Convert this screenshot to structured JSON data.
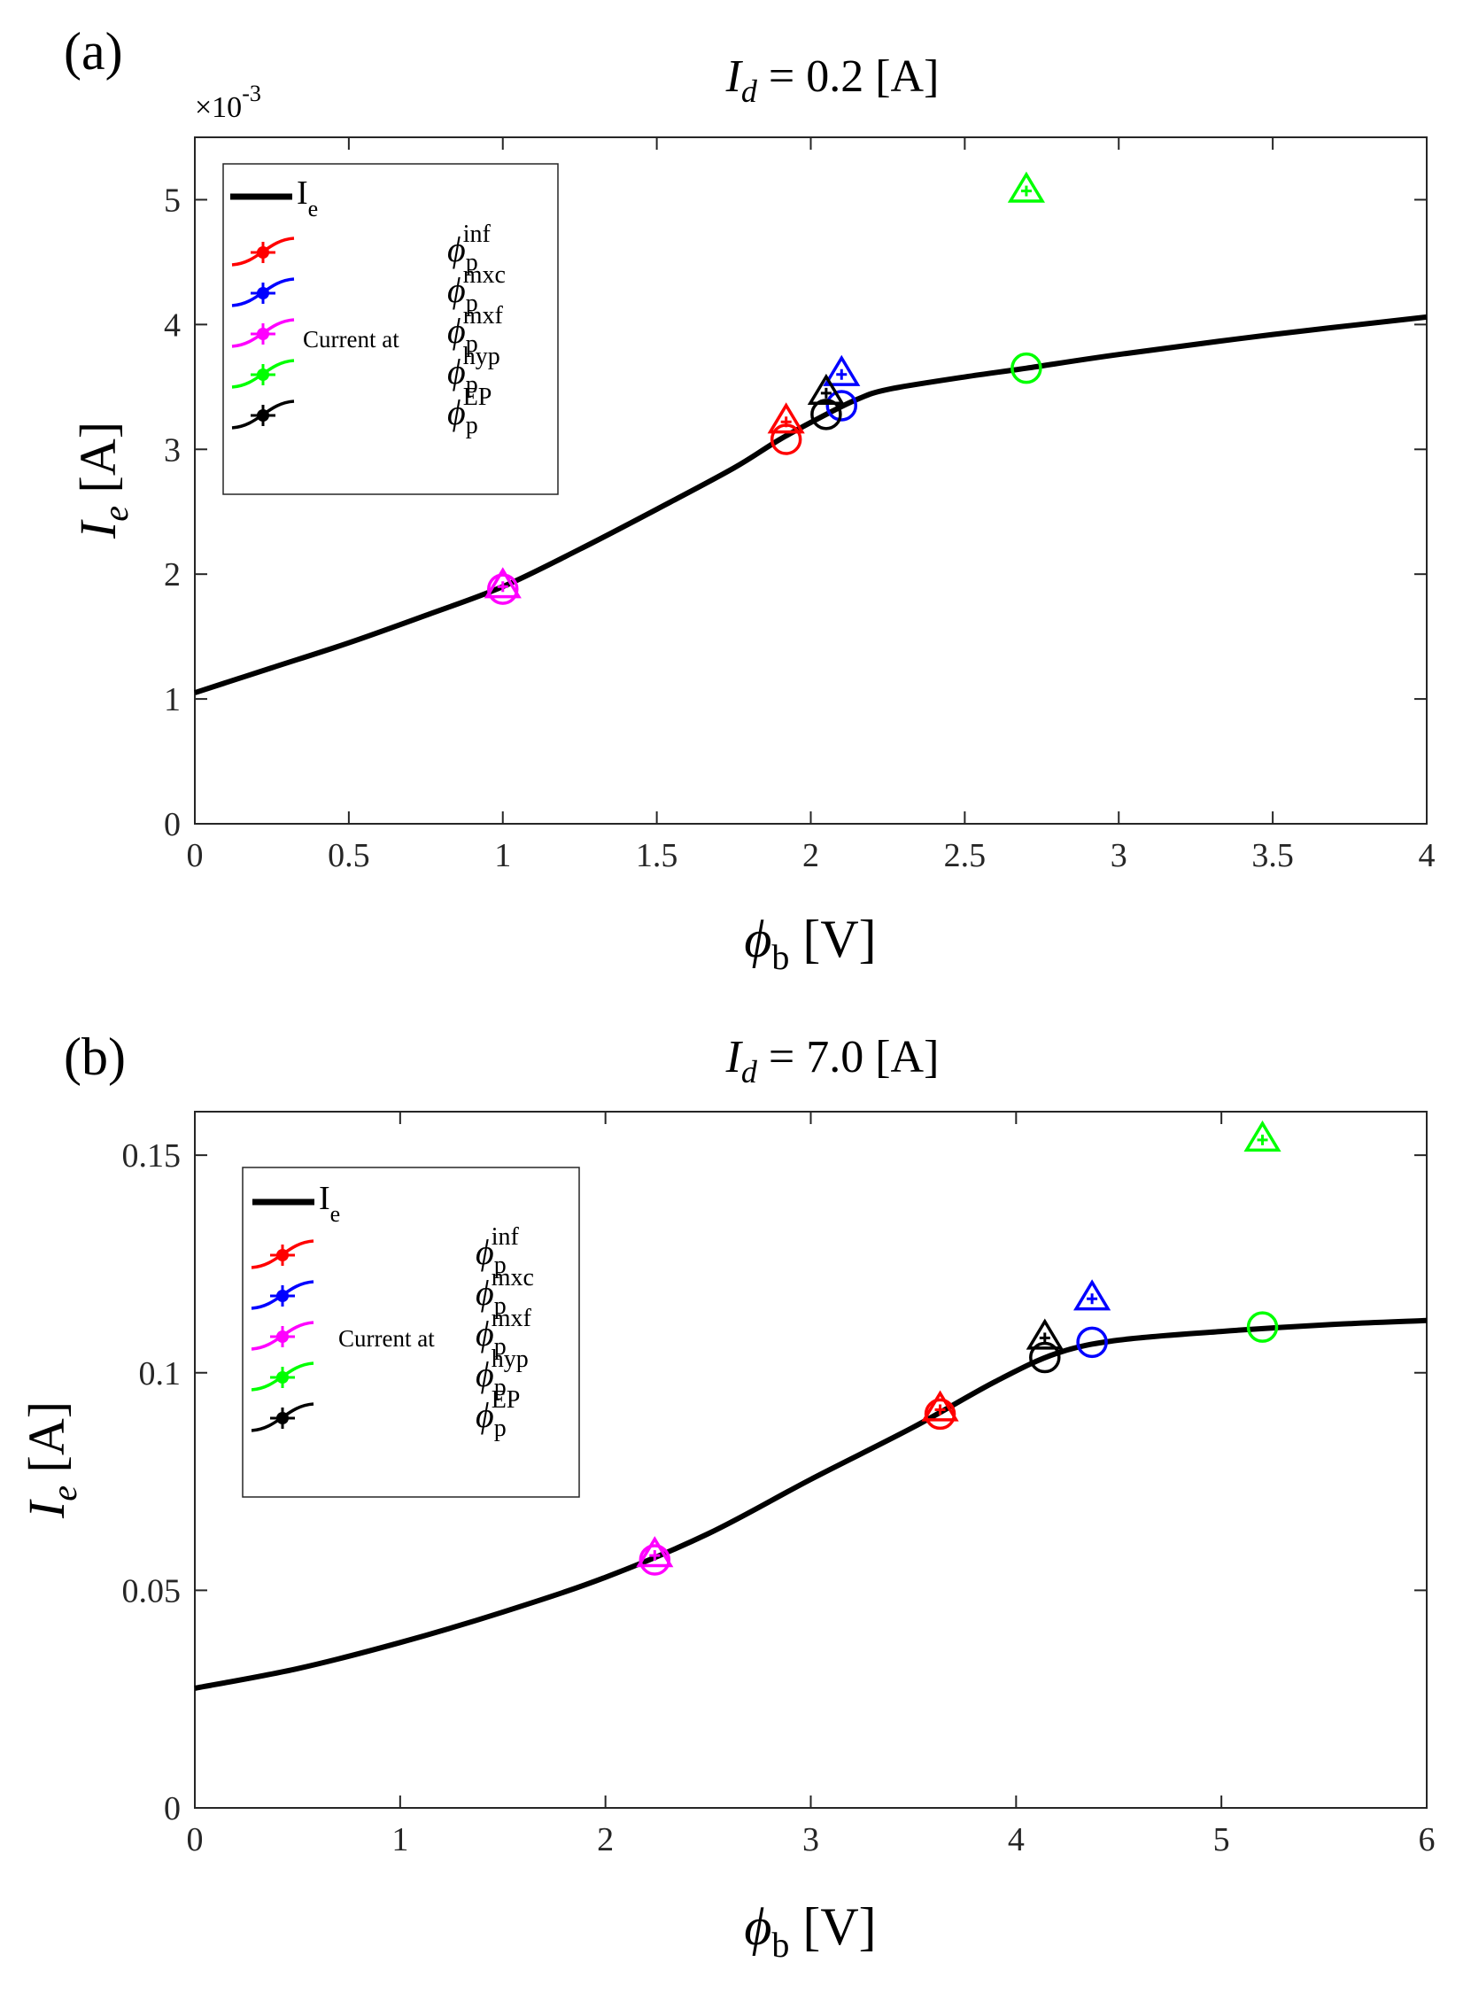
{
  "colors": {
    "curve": "#000000",
    "inf": "#ff0000",
    "mxc": "#0000ff",
    "mxf": "#ff00ff",
    "hyp": "#00ff00",
    "ep": "#000000"
  },
  "legend": {
    "curve_label": "I",
    "curve_label_sub": "e",
    "current_at": "Current at",
    "phi": "ϕ",
    "sub": "p",
    "items": [
      {
        "key": "inf",
        "sup": "inf"
      },
      {
        "key": "mxc",
        "sup": "mxc"
      },
      {
        "key": "mxf",
        "sup": "mxf"
      },
      {
        "key": "hyp",
        "sup": "hyp"
      },
      {
        "key": "ep",
        "sup": "EP"
      }
    ]
  },
  "chart_data": [
    {
      "panel_label": "(a)",
      "type": "line",
      "title": {
        "prefix": "I",
        "sub": "d",
        "rest": " = 0.2 [A]"
      },
      "xlabel": {
        "phi": "ϕ",
        "sub": "b",
        "unit": " [V]"
      },
      "ylabel": {
        "base": "I",
        "sub": "e",
        "unit": " [A]"
      },
      "exponent_label": {
        "mult": "×10",
        "exp": "-3"
      },
      "xlim": [
        0,
        4
      ],
      "ylim": [
        0,
        5.5
      ],
      "xticks": [
        0,
        0.5,
        1,
        1.5,
        2,
        2.5,
        3,
        3.5,
        4
      ],
      "xtick_labels": [
        "0",
        "0.5",
        "1",
        "1.5",
        "2",
        "2.5",
        "3",
        "3.5",
        "4"
      ],
      "yticks": [
        0,
        1,
        2,
        3,
        4,
        5
      ],
      "ytick_labels": [
        "0",
        "1",
        "2",
        "3",
        "4",
        "5"
      ],
      "curve": {
        "x": [
          0,
          0.25,
          0.5,
          0.75,
          1.0,
          1.25,
          1.5,
          1.75,
          1.9,
          2.05,
          2.15,
          2.25,
          2.5,
          2.7,
          3.0,
          3.5,
          4.0
        ],
        "y": [
          1.05,
          1.25,
          1.45,
          1.67,
          1.9,
          2.2,
          2.52,
          2.85,
          3.08,
          3.28,
          3.4,
          3.48,
          3.58,
          3.65,
          3.76,
          3.92,
          4.06
        ]
      },
      "markers": [
        {
          "series": "inf",
          "x": 1.92,
          "y_circle": 3.08,
          "y_triangle": 3.22
        },
        {
          "series": "mxc",
          "x": 2.1,
          "y_circle": 3.35,
          "y_triangle": 3.6
        },
        {
          "series": "mxf",
          "x": 1.0,
          "y_circle": 1.88,
          "y_triangle": 1.9
        },
        {
          "series": "hyp",
          "x": 2.7,
          "y_circle": 3.65,
          "y_triangle": 5.07
        },
        {
          "series": "ep",
          "x": 2.05,
          "y_circle": 3.28,
          "y_triangle": 3.45
        }
      ]
    },
    {
      "panel_label": "(b)",
      "type": "line",
      "title": {
        "prefix": "I",
        "sub": "d",
        "rest": " = 7.0 [A]"
      },
      "xlabel": {
        "phi": "ϕ",
        "sub": "b",
        "unit": " [V]"
      },
      "ylabel": {
        "base": "I",
        "sub": "e",
        "unit": " [A]"
      },
      "xlim": [
        0,
        6
      ],
      "ylim": [
        0,
        0.16
      ],
      "xticks": [
        0,
        1,
        2,
        3,
        4,
        5,
        6
      ],
      "xtick_labels": [
        "0",
        "1",
        "2",
        "3",
        "4",
        "5",
        "6"
      ],
      "yticks": [
        0,
        0.05,
        0.1,
        0.15
      ],
      "ytick_labels": [
        "0",
        "0.05",
        "0.1",
        "0.15"
      ],
      "curve": {
        "x": [
          0,
          0.5,
          1,
          1.5,
          2,
          2.5,
          3,
          3.5,
          3.9,
          4.2,
          4.5,
          5,
          5.5,
          6
        ],
        "y": [
          0.0275,
          0.032,
          0.038,
          0.045,
          0.053,
          0.063,
          0.0755,
          0.0875,
          0.098,
          0.1045,
          0.1075,
          0.1095,
          0.111,
          0.112
        ]
      },
      "markers": [
        {
          "series": "inf",
          "x": 3.63,
          "y_circle": 0.0905,
          "y_triangle": 0.0915
        },
        {
          "series": "mxc",
          "x": 4.37,
          "y_circle": 0.107,
          "y_triangle": 0.117
        },
        {
          "series": "mxf",
          "x": 2.24,
          "y_circle": 0.057,
          "y_triangle": 0.058
        },
        {
          "series": "hyp",
          "x": 5.2,
          "y_circle": 0.1105,
          "y_triangle": 0.1535
        },
        {
          "series": "ep",
          "x": 4.14,
          "y_circle": 0.1035,
          "y_triangle": 0.108
        }
      ]
    }
  ]
}
